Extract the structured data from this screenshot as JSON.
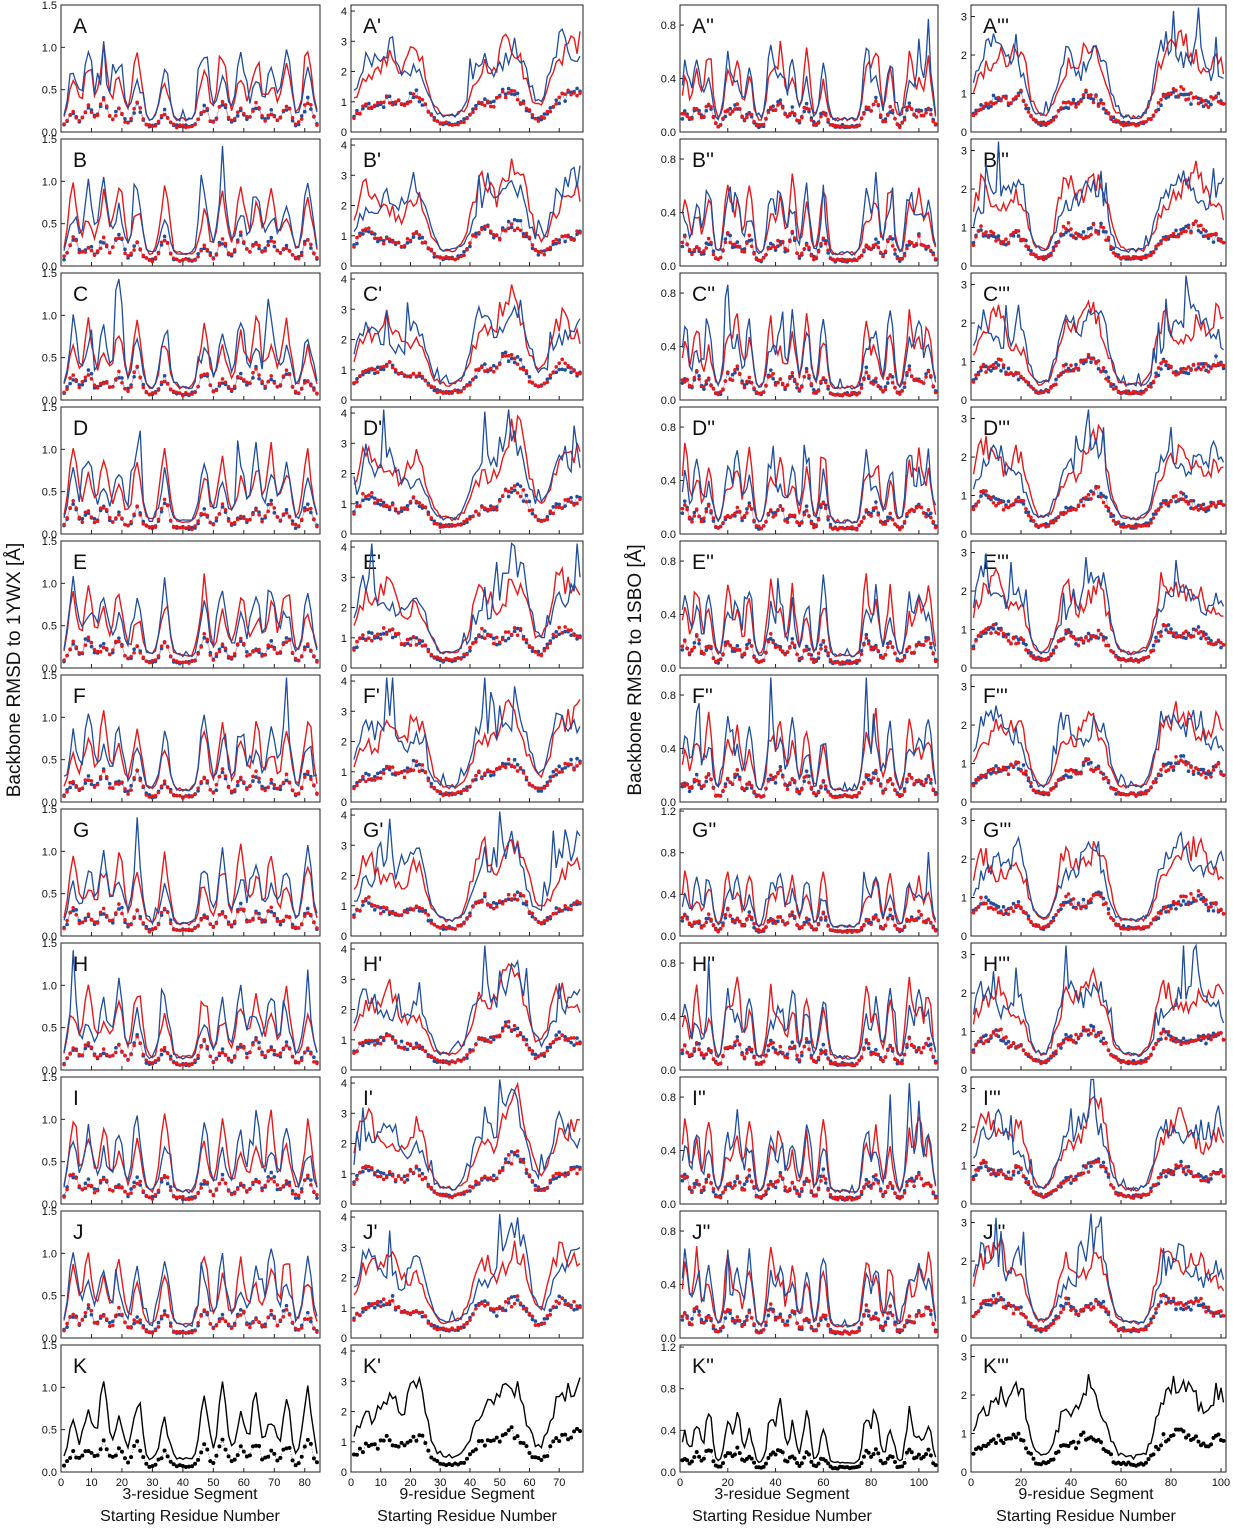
{
  "y_labels": [
    "Backbone RMSD to 1YWX [Å]",
    "Backbone RMSD to 1SBO [Å]"
  ],
  "x_labels": [
    [
      "3-residue Segment",
      "Starting Residue Number"
    ],
    [
      "9-residue Segment",
      "Starting Residue Number"
    ],
    [
      "3-residue Segment",
      "Starting Residue Number"
    ],
    [
      "9-residue Segment",
      "Starting Residue Number"
    ]
  ],
  "colors": {
    "blue": "#1f4e9c",
    "red": "#e41a1c",
    "black": "#000000"
  },
  "chart_data": [
    {
      "type": "line",
      "column_set": "1YWX 3-residue",
      "xlim": [
        0,
        85
      ],
      "ylim": [
        0,
        1.5
      ],
      "xticks": [
        0,
        10,
        20,
        30,
        40,
        50,
        60,
        70,
        80
      ],
      "yticks": [
        "0.0",
        "0.5",
        "1.0",
        "1.5"
      ],
      "panels": [
        "A",
        "B",
        "C",
        "D",
        "E",
        "F",
        "G",
        "H",
        "I",
        "J",
        "K"
      ],
      "peak_x": [
        4,
        9,
        14,
        19,
        25,
        34,
        47,
        53,
        59,
        64,
        69,
        74,
        81
      ],
      "profile": [
        0.08,
        0.12,
        0.18,
        0.1,
        0.14,
        0.22,
        0.1,
        0.18,
        0.2,
        0.95,
        0.25,
        0.08,
        0.12,
        0.9,
        0.2,
        0.55,
        0.65,
        0.25,
        0.3,
        0.55,
        0.12,
        0.75,
        0.3
      ],
      "series_names": []
    },
    {
      "type": "line",
      "column_set": "1YWX 9-residue",
      "xlim": [
        0,
        78
      ],
      "ylim": [
        0,
        4.2
      ],
      "xticks": [
        0,
        10,
        20,
        30,
        40,
        50,
        60,
        70
      ],
      "yticks": [
        "0",
        "1",
        "2",
        "3",
        "4"
      ],
      "panels": [
        "A'",
        "B'",
        "C'",
        "D'",
        "E'",
        "F'",
        "G'",
        "H'",
        "I'",
        "J'",
        "K'"
      ],
      "peak_x": [
        5,
        13,
        22,
        44,
        52,
        57,
        70,
        77
      ],
      "series_names": []
    },
    {
      "type": "line",
      "column_set": "1SBO 3-residue",
      "xlim": [
        0,
        108
      ],
      "ylim": [
        0,
        0.95
      ],
      "xticks": [
        0,
        20,
        40,
        60,
        80,
        100
      ],
      "yticks": [
        "0.0",
        "0.4",
        "0.8"
      ],
      "panels": [
        "A''",
        "B''",
        "C''",
        "D''",
        "E''",
        "F''",
        "G''",
        "H''",
        "I''",
        "J''",
        "K''"
      ],
      "peak_x": [
        2,
        7,
        12,
        20,
        24,
        29,
        38,
        42,
        47,
        53,
        60,
        78,
        82,
        88,
        96,
        100,
        104
      ],
      "series_names": []
    },
    {
      "type": "line",
      "column_set": "1SBO 9-residue",
      "xlim": [
        0,
        102
      ],
      "ylim": [
        0,
        3.3
      ],
      "xticks": [
        0,
        20,
        40,
        60,
        80,
        100
      ],
      "yticks": [
        "0",
        "1",
        "2",
        "3"
      ],
      "panels": [
        "A'''",
        "B'''",
        "C'''",
        "D'''",
        "E'''",
        "F'''",
        "G'''",
        "H'''",
        "I'''",
        "J'''",
        "K'''"
      ],
      "peak_x": [
        4,
        11,
        19,
        38,
        46,
        52,
        77,
        84,
        91,
        99
      ],
      "series_names": []
    }
  ],
  "panel_yticks": {
    "G''": [
      "0.0",
      "0.4",
      "0.8",
      "1.2"
    ],
    "K''": [
      "0.0",
      "0.4",
      "0.8",
      "1.2"
    ]
  }
}
